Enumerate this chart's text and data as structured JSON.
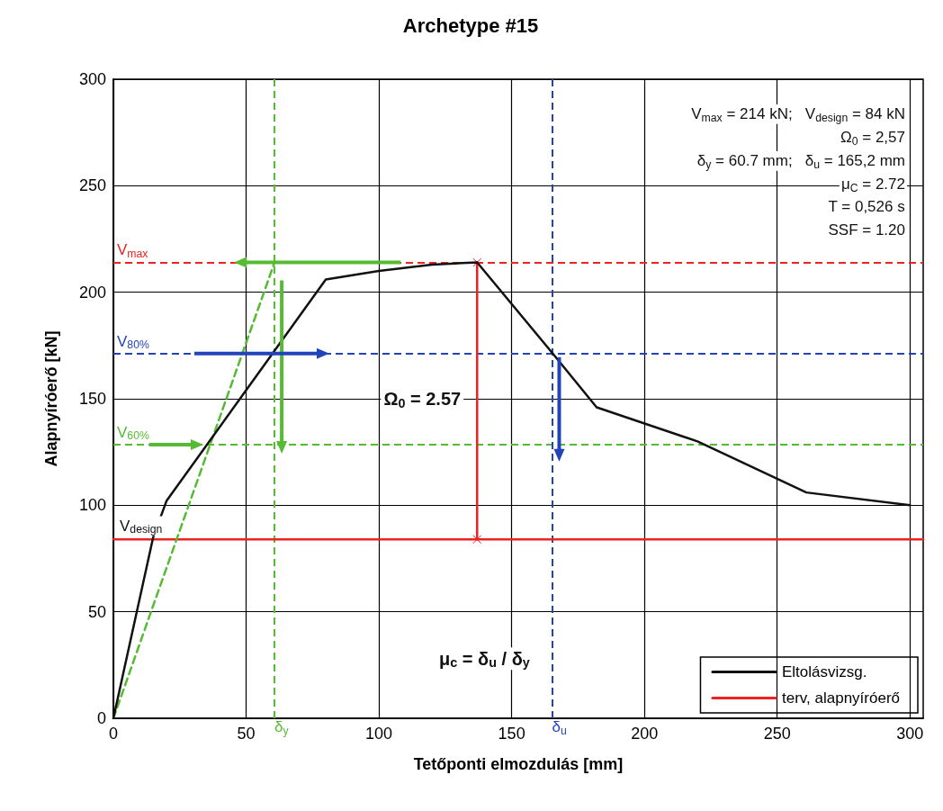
{
  "chart_data": {
    "type": "line",
    "title": "Archetype #15",
    "xlabel": "Tetőponti elmozdulás [mm]",
    "ylabel": "Alapnyíróerő [kN]",
    "xlim": [
      0,
      305
    ],
    "xticks": [
      0,
      50,
      100,
      150,
      200,
      250,
      300
    ],
    "ylim": [
      0,
      300
    ],
    "yticks": [
      0,
      50,
      100,
      150,
      200,
      250,
      300
    ],
    "grid": true,
    "legend": "bottom right",
    "marker": "none",
    "line_style": "solid",
    "series": [
      {
        "name": "Eltolásvizsg.",
        "color": "#111111",
        "x": [
          0,
          15,
          20,
          50,
          80,
          100,
          120,
          137,
          165,
          182,
          220,
          261,
          300
        ],
        "values": [
          0,
          85,
          102,
          154,
          206,
          210,
          213,
          214,
          172,
          146,
          130,
          106,
          100
        ]
      },
      {
        "name": "terv, alapnyíróerő",
        "color": "#ee2222",
        "x": [
          0,
          305
        ],
        "values": [
          84,
          84
        ]
      },
      {
        "color": "#55bb33",
        "x": [
          0,
          60.7
        ],
        "values": [
          0,
          214
        ],
        "line_style": "dashed"
      },
      {
        "color": "#ee2222",
        "x": [
          137,
          137
        ],
        "values": [
          84,
          214
        ],
        "marker": "cross"
      }
    ],
    "ref_lines": [
      {
        "axis": "y",
        "value": 214,
        "label": "V$_{max}$",
        "color": "#ee2222",
        "line_style": "dashed"
      },
      {
        "axis": "y",
        "value": 171.2,
        "label": "V$_{80%}$",
        "color": "#2244bb",
        "line_style": "dashed"
      },
      {
        "axis": "y",
        "value": 128.4,
        "label": "V$_{60%}$",
        "color": "#55bb33",
        "line_style": "dashed"
      },
      {
        "axis": "x",
        "value": 60.7,
        "label": "δ$_{y}$",
        "color": "#55bb33",
        "line_style": "dashed"
      },
      {
        "axis": "x",
        "value": 165.2,
        "label": "δ$_{u}$",
        "color": "#2244bb",
        "line_style": "dashed"
      }
    ],
    "annotations": [
      "V$_{max}$ = 214 kN;   V$_{design}$ = 84 kN",
      "Ω$_{0}$ = 2,57",
      "δ$_{y}$ = 60.7 mm;   δ$_{u}$ = 165,2 mm",
      "μ$_{C}$ = 2.72",
      "T = 0,526 s",
      "SSF = 1.20",
      {
        "text": "Ω$_{0}$ = 2.57",
        "x": 137,
        "y": 150
      },
      {
        "text": "μ$_{c}$ = δ$_{u}$ / δ$_{y}$",
        "x": 165.2,
        "y": 28
      },
      {
        "text": "V$_{design}$",
        "x": 0,
        "y": 84
      }
    ]
  }
}
